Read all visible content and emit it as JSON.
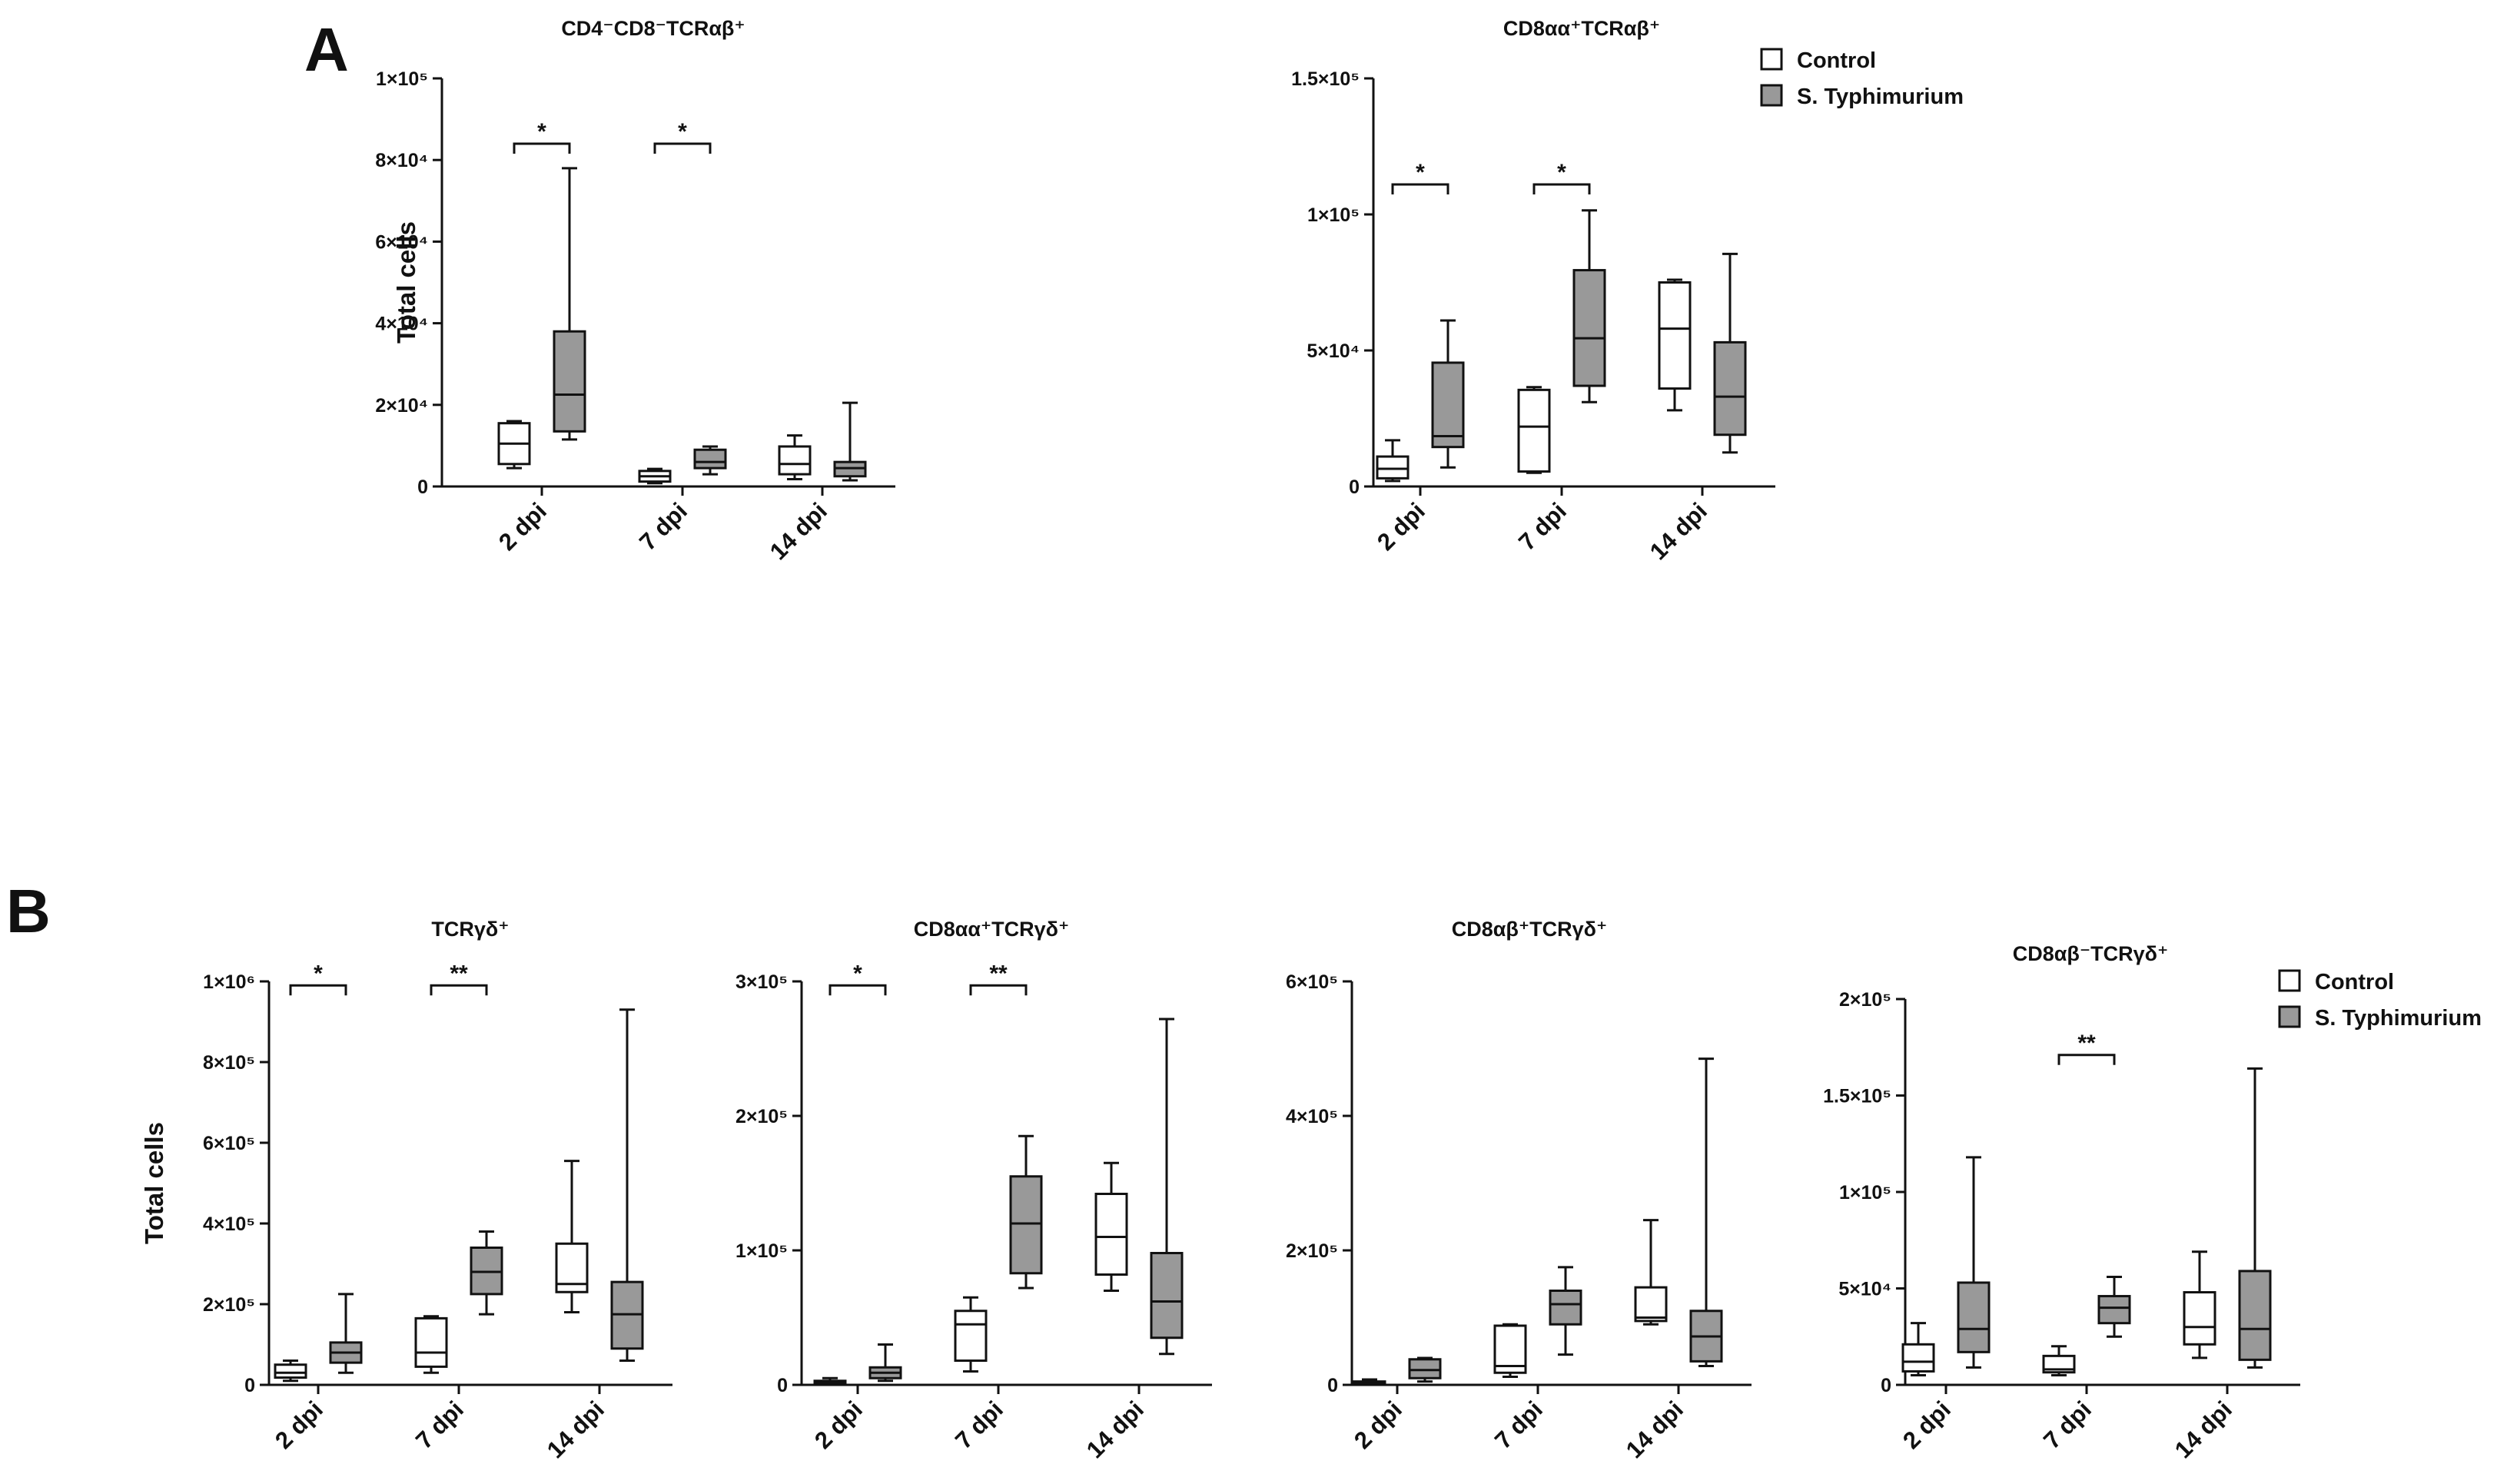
{
  "panels": [
    {
      "letter": "A"
    },
    {
      "letter": "B"
    }
  ],
  "legend": {
    "control": "Control",
    "infected": "S. Typhimurium",
    "control_color": "#ffffff",
    "infected_color": "#999999"
  },
  "chart_data": [
    {
      "type": "box",
      "panel": "A",
      "title": "CD4⁻CD8⁻TCRαβ⁺",
      "ylabel": "Total cells",
      "ylim": [
        0,
        100000
      ],
      "yticks": [
        0,
        20000,
        40000,
        60000,
        80000,
        100000
      ],
      "ytick_labels": [
        "0",
        "2×10⁴",
        "4×10⁴",
        "6×10⁴",
        "8×10⁴",
        "1×10⁵"
      ],
      "categories": [
        "2 dpi",
        "7 dpi",
        "14 dpi"
      ],
      "series": [
        {
          "name": "Control",
          "boxes": [
            {
              "min": 4500,
              "q1": 5500,
              "median": 10500,
              "q3": 15500,
              "max": 16000
            },
            {
              "min": 800,
              "q1": 1200,
              "median": 2500,
              "q3": 3800,
              "max": 4300
            },
            {
              "min": 1800,
              "q1": 3000,
              "median": 5500,
              "q3": 9800,
              "max": 12500
            }
          ]
        },
        {
          "name": "S. Typhimurium",
          "boxes": [
            {
              "min": 11500,
              "q1": 13500,
              "median": 22500,
              "q3": 38000,
              "max": 78000
            },
            {
              "min": 3000,
              "q1": 4500,
              "median": 6000,
              "q3": 9000,
              "max": 9800
            },
            {
              "min": 1500,
              "q1": 2500,
              "median": 4500,
              "q3": 6000,
              "max": 20500
            }
          ]
        }
      ],
      "significance": [
        {
          "category": "2 dpi",
          "label": "*",
          "y": 84000
        },
        {
          "category": "7 dpi",
          "label": "*",
          "y": 84000
        }
      ],
      "show_ylabel": true,
      "legend": false
    },
    {
      "type": "box",
      "panel": "A",
      "title": "CD8αα⁺TCRαβ⁺",
      "ylabel": "",
      "ylim": [
        0,
        150000
      ],
      "yticks": [
        0,
        50000,
        100000,
        150000
      ],
      "ytick_labels": [
        "0",
        "5×10⁴",
        "1×10⁵",
        "1.5×10⁵"
      ],
      "categories": [
        "2 dpi",
        "7 dpi",
        "14 dpi"
      ],
      "series": [
        {
          "name": "Control",
          "boxes": [
            {
              "min": 2000,
              "q1": 3000,
              "median": 6500,
              "q3": 11000,
              "max": 17000
            },
            {
              "min": 5000,
              "q1": 5500,
              "median": 22000,
              "q3": 35500,
              "max": 36500
            },
            {
              "min": 28000,
              "q1": 36000,
              "median": 58000,
              "q3": 75000,
              "max": 76000
            }
          ]
        },
        {
          "name": "S. Typhimurium",
          "boxes": [
            {
              "min": 7000,
              "q1": 14500,
              "median": 18500,
              "q3": 45500,
              "max": 61000
            },
            {
              "min": 31000,
              "q1": 37000,
              "median": 54500,
              "q3": 79500,
              "max": 101500
            },
            {
              "min": 12500,
              "q1": 19000,
              "median": 33000,
              "q3": 53000,
              "max": 85500
            }
          ]
        }
      ],
      "significance": [
        {
          "category": "2 dpi",
          "label": "*",
          "y": 111000
        },
        {
          "category": "7 dpi",
          "label": "*",
          "y": 111000
        }
      ],
      "show_ylabel": false,
      "legend": true
    },
    {
      "type": "box",
      "panel": "B",
      "title": "TCRγδ⁺",
      "ylabel": "Total cells",
      "ylim": [
        0,
        1000000
      ],
      "yticks": [
        0,
        200000,
        400000,
        600000,
        800000,
        1000000
      ],
      "ytick_labels": [
        "0",
        "2×10⁵",
        "4×10⁵",
        "6×10⁵",
        "8×10⁵",
        "1×10⁶"
      ],
      "categories": [
        "2 dpi",
        "7 dpi",
        "14 dpi"
      ],
      "series": [
        {
          "name": "Control",
          "boxes": [
            {
              "min": 10000,
              "q1": 18000,
              "median": 30000,
              "q3": 50000,
              "max": 60000
            },
            {
              "min": 30000,
              "q1": 45000,
              "median": 80000,
              "q3": 165000,
              "max": 170000
            },
            {
              "min": 180000,
              "q1": 230000,
              "median": 250000,
              "q3": 350000,
              "max": 555000
            }
          ]
        },
        {
          "name": "S. Typhimurium",
          "boxes": [
            {
              "min": 30000,
              "q1": 55000,
              "median": 80000,
              "q3": 105000,
              "max": 225000
            },
            {
              "min": 175000,
              "q1": 225000,
              "median": 280000,
              "q3": 340000,
              "max": 380000
            },
            {
              "min": 60000,
              "q1": 90000,
              "median": 175000,
              "q3": 255000,
              "max": 930000
            }
          ]
        }
      ],
      "significance": [
        {
          "category": "2 dpi",
          "label": "*",
          "y": 990000
        },
        {
          "category": "7 dpi",
          "label": "**",
          "y": 990000
        }
      ],
      "show_ylabel": true,
      "legend": false
    },
    {
      "type": "box",
      "panel": "B",
      "title": "CD8αα⁺TCRγδ⁺",
      "ylabel": "",
      "ylim": [
        0,
        300000
      ],
      "yticks": [
        0,
        100000,
        200000,
        300000
      ],
      "ytick_labels": [
        "0",
        "1×10⁵",
        "2×10⁵",
        "3×10⁵"
      ],
      "categories": [
        "2 dpi",
        "7 dpi",
        "14 dpi"
      ],
      "series": [
        {
          "name": "Control",
          "boxes": [
            {
              "min": 0,
              "q1": 500,
              "median": 1500,
              "q3": 3000,
              "max": 5000
            },
            {
              "min": 10000,
              "q1": 18000,
              "median": 45000,
              "q3": 55000,
              "max": 65000
            },
            {
              "min": 70000,
              "q1": 82000,
              "median": 110000,
              "q3": 142000,
              "max": 165000
            }
          ]
        },
        {
          "name": "S. Typhimurium",
          "boxes": [
            {
              "min": 3000,
              "q1": 5000,
              "median": 9000,
              "q3": 13000,
              "max": 30000
            },
            {
              "min": 72000,
              "q1": 83000,
              "median": 120000,
              "q3": 155000,
              "max": 185000
            },
            {
              "min": 23000,
              "q1": 35000,
              "median": 62000,
              "q3": 98000,
              "max": 272000
            }
          ]
        }
      ],
      "significance": [
        {
          "category": "2 dpi",
          "label": "*",
          "y": 297000
        },
        {
          "category": "7 dpi",
          "label": "**",
          "y": 297000
        }
      ],
      "show_ylabel": false,
      "legend": false
    },
    {
      "type": "box",
      "panel": "B",
      "title": "CD8αβ⁺TCRγδ⁺",
      "ylabel": "",
      "ylim": [
        0,
        600000
      ],
      "yticks": [
        0,
        200000,
        400000,
        600000
      ],
      "ytick_labels": [
        "0",
        "2×10⁵",
        "4×10⁵",
        "6×10⁵"
      ],
      "categories": [
        "2 dpi",
        "7 dpi",
        "14 dpi"
      ],
      "series": [
        {
          "name": "Control",
          "boxes": [
            {
              "min": 0,
              "q1": 1000,
              "median": 2500,
              "q3": 5000,
              "max": 8000
            },
            {
              "min": 12000,
              "q1": 18000,
              "median": 28000,
              "q3": 88000,
              "max": 90000
            },
            {
              "min": 90000,
              "q1": 95000,
              "median": 100000,
              "q3": 145000,
              "max": 245000
            }
          ]
        },
        {
          "name": "S. Typhimurium",
          "boxes": [
            {
              "min": 5000,
              "q1": 10000,
              "median": 22000,
              "q3": 38000,
              "max": 40000
            },
            {
              "min": 45000,
              "q1": 90000,
              "median": 120000,
              "q3": 140000,
              "max": 175000
            },
            {
              "min": 28000,
              "q1": 35000,
              "median": 72000,
              "q3": 110000,
              "max": 485000
            }
          ]
        }
      ],
      "significance": [],
      "show_ylabel": false,
      "legend": false
    },
    {
      "type": "box",
      "panel": "B",
      "title": "CD8αβ⁻TCRγδ⁺",
      "ylabel": "",
      "ylim": [
        0,
        200000
      ],
      "yticks": [
        0,
        50000,
        100000,
        150000,
        200000
      ],
      "ytick_labels": [
        "0",
        "5×10⁴",
        "1×10⁵",
        "1.5×10⁵",
        "2×10⁵"
      ],
      "categories": [
        "2 dpi",
        "7 dpi",
        "14 dpi"
      ],
      "series": [
        {
          "name": "Control",
          "boxes": [
            {
              "min": 5000,
              "q1": 7000,
              "median": 12000,
              "q3": 21000,
              "max": 32000
            },
            {
              "min": 5000,
              "q1": 6500,
              "median": 8000,
              "q3": 15000,
              "max": 20000
            },
            {
              "min": 14000,
              "q1": 21000,
              "median": 30000,
              "q3": 48000,
              "max": 69000
            }
          ]
        },
        {
          "name": "S. Typhimurium",
          "boxes": [
            {
              "min": 9000,
              "q1": 17000,
              "median": 29000,
              "q3": 53000,
              "max": 118000
            },
            {
              "min": 25000,
              "q1": 32000,
              "median": 40000,
              "q3": 46000,
              "max": 56000
            },
            {
              "min": 9000,
              "q1": 13000,
              "median": 29000,
              "q3": 59000,
              "max": 164000
            }
          ]
        }
      ],
      "significance": [
        {
          "category": "7 dpi",
          "label": "**",
          "y": 171000
        }
      ],
      "show_ylabel": false,
      "legend": true
    }
  ]
}
